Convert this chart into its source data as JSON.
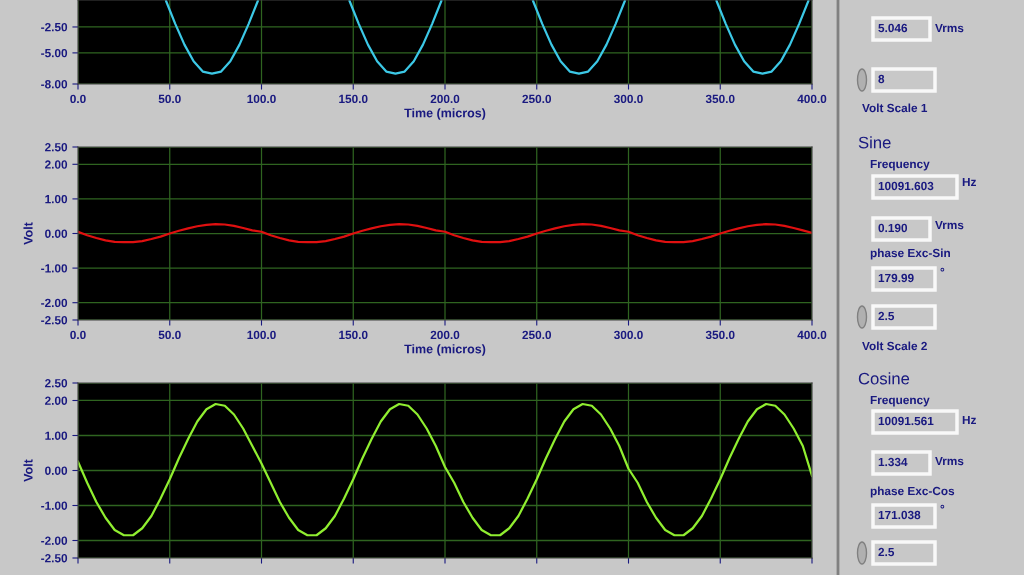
{
  "chart_data": [
    {
      "type": "line",
      "xlabel": "Time (micros)",
      "xlim": [
        0,
        400
      ],
      "ylim": [
        -8,
        0.1
      ],
      "grid": true,
      "xticks": [
        {
          "value": 0,
          "label": "0.0"
        },
        {
          "value": 50,
          "label": "50.0"
        },
        {
          "value": 100,
          "label": "100.0"
        },
        {
          "value": 150,
          "label": "150.0"
        },
        {
          "value": 200,
          "label": "200.0"
        },
        {
          "value": 250,
          "label": "250.0"
        },
        {
          "value": 300,
          "label": "300.0"
        },
        {
          "value": 350,
          "label": "350.0"
        },
        {
          "value": 400,
          "label": "400.0"
        }
      ],
      "yticks": [
        {
          "value": -8,
          "label": "-8.00"
        },
        {
          "value": -5,
          "label": "-5.00"
        },
        {
          "value": -2.5,
          "label": "-2.50"
        }
      ],
      "series": [
        {
          "color": "#3cc8e6",
          "x": [
            48,
            53,
            58,
            63,
            68,
            73,
            78,
            83,
            88,
            93,
            98,
            123,
            148,
            153,
            158,
            163,
            168,
            173,
            178,
            183,
            188,
            193,
            198,
            223,
            248,
            253,
            258,
            263,
            268,
            273,
            278,
            283,
            288,
            293,
            298,
            323,
            348,
            353,
            358,
            363,
            368,
            373,
            378,
            383,
            388,
            393,
            398
          ],
          "values": [
            0,
            -2.2,
            -4.2,
            -5.8,
            -6.8,
            -7.0,
            -6.8,
            -5.8,
            -4.2,
            -2.2,
            0,
            null,
            0,
            -2.2,
            -4.2,
            -5.8,
            -6.8,
            -7.0,
            -6.8,
            -5.8,
            -4.2,
            -2.2,
            0,
            null,
            0,
            -2.2,
            -4.2,
            -5.8,
            -6.8,
            -7.0,
            -6.8,
            -5.8,
            -4.2,
            -2.2,
            0,
            null,
            0,
            -2.2,
            -4.2,
            -5.8,
            -6.8,
            -7.0,
            -6.8,
            -5.8,
            -4.2,
            -2.2,
            0
          ]
        }
      ]
    },
    {
      "type": "line",
      "xlabel": "Time (micros)",
      "ylabel": "Volt",
      "xlim": [
        0,
        400
      ],
      "ylim": [
        -2.5,
        2.5
      ],
      "grid": true,
      "xticks": [
        {
          "value": 0,
          "label": "0.0"
        },
        {
          "value": 50,
          "label": "50.0"
        },
        {
          "value": 100,
          "label": "100.0"
        },
        {
          "value": 150,
          "label": "150.0"
        },
        {
          "value": 200,
          "label": "200.0"
        },
        {
          "value": 250,
          "label": "250.0"
        },
        {
          "value": 300,
          "label": "300.0"
        },
        {
          "value": 350,
          "label": "350.0"
        },
        {
          "value": 400,
          "label": "400.0"
        }
      ],
      "yticks": [
        {
          "value": -2.5,
          "label": "-2.50"
        },
        {
          "value": -2,
          "label": "-2.00"
        },
        {
          "value": -1,
          "label": "-1.00"
        },
        {
          "value": 0,
          "label": "0.00"
        },
        {
          "value": 1,
          "label": "1.00"
        },
        {
          "value": 2,
          "label": "2.00"
        },
        {
          "value": 2.5,
          "label": "2.50"
        }
      ],
      "series": [
        {
          "color": "#e01010",
          "x": [
            0,
            5,
            10,
            15,
            20,
            25,
            30,
            35,
            40,
            45,
            50,
            55,
            60,
            65,
            70,
            75,
            80,
            85,
            90,
            95,
            100,
            105,
            110,
            115,
            120,
            125,
            130,
            135,
            140,
            145,
            150,
            155,
            160,
            165,
            170,
            175,
            180,
            185,
            190,
            195,
            200,
            205,
            210,
            215,
            220,
            225,
            230,
            235,
            240,
            245,
            250,
            255,
            260,
            265,
            270,
            275,
            280,
            285,
            290,
            295,
            300,
            305,
            310,
            315,
            320,
            325,
            330,
            335,
            340,
            345,
            350,
            355,
            360,
            365,
            370,
            375,
            380,
            385,
            390,
            395,
            400
          ],
          "values": [
            0.05,
            -0.05,
            -0.13,
            -0.2,
            -0.24,
            -0.25,
            -0.25,
            -0.22,
            -0.16,
            -0.09,
            0.0,
            0.08,
            0.15,
            0.21,
            0.25,
            0.27,
            0.26,
            0.22,
            0.16,
            0.09,
            0.05,
            -0.05,
            -0.13,
            -0.2,
            -0.24,
            -0.25,
            -0.25,
            -0.22,
            -0.16,
            -0.09,
            0.0,
            0.08,
            0.15,
            0.21,
            0.25,
            0.27,
            0.26,
            0.22,
            0.16,
            0.09,
            0.05,
            -0.05,
            -0.13,
            -0.2,
            -0.24,
            -0.25,
            -0.25,
            -0.22,
            -0.16,
            -0.09,
            0.0,
            0.08,
            0.15,
            0.21,
            0.25,
            0.27,
            0.26,
            0.22,
            0.16,
            0.09,
            0.05,
            -0.05,
            -0.13,
            -0.2,
            -0.24,
            -0.25,
            -0.25,
            -0.22,
            -0.16,
            -0.09,
            0.0,
            0.08,
            0.15,
            0.21,
            0.25,
            0.27,
            0.26,
            0.22,
            0.16,
            0.09,
            0.02
          ]
        }
      ]
    },
    {
      "type": "line",
      "ylabel": "Volt",
      "xlim": [
        0,
        400
      ],
      "ylim": [
        -2.5,
        2.5
      ],
      "grid": true,
      "tick_labels": "y",
      "xticks": [
        {
          "value": 0,
          "label": null
        },
        {
          "value": 50,
          "label": null
        },
        {
          "value": 100,
          "label": null
        },
        {
          "value": 150,
          "label": null
        },
        {
          "value": 200,
          "label": null
        },
        {
          "value": 250,
          "label": null
        },
        {
          "value": 300,
          "label": null
        },
        {
          "value": 350,
          "label": null
        },
        {
          "value": 400,
          "label": null
        }
      ],
      "yticks": [
        {
          "value": -2.5,
          "label": "-2.50"
        },
        {
          "value": -2,
          "label": "-2.00"
        },
        {
          "value": -1,
          "label": "-1.00"
        },
        {
          "value": 0,
          "label": "0.00"
        },
        {
          "value": 1,
          "label": "1.00"
        },
        {
          "value": 2,
          "label": "2.00"
        },
        {
          "value": 2.5,
          "label": "2.50"
        }
      ],
      "series": [
        {
          "color": "#90ee30",
          "x": [
            0,
            5,
            10,
            15,
            20,
            25,
            30,
            35,
            40,
            45,
            50,
            55,
            60,
            65,
            70,
            75,
            80,
            85,
            90,
            95,
            100,
            105,
            110,
            115,
            120,
            125,
            130,
            135,
            140,
            145,
            150,
            155,
            160,
            165,
            170,
            175,
            180,
            185,
            190,
            195,
            200,
            205,
            210,
            215,
            220,
            225,
            230,
            235,
            240,
            245,
            250,
            255,
            260,
            265,
            270,
            275,
            280,
            285,
            290,
            295,
            300,
            305,
            310,
            315,
            320,
            325,
            330,
            335,
            340,
            345,
            350,
            355,
            360,
            365,
            370,
            375,
            380,
            385,
            390,
            395,
            400
          ],
          "values": [
            0.25,
            -0.35,
            -0.9,
            -1.35,
            -1.7,
            -1.85,
            -1.85,
            -1.65,
            -1.3,
            -0.8,
            -0.25,
            0.35,
            0.9,
            1.4,
            1.75,
            1.9,
            1.85,
            1.6,
            1.2,
            0.7,
            0.2,
            -0.35,
            -0.9,
            -1.35,
            -1.7,
            -1.85,
            -1.85,
            -1.65,
            -1.3,
            -0.8,
            -0.25,
            0.35,
            0.9,
            1.4,
            1.75,
            1.9,
            1.85,
            1.6,
            1.2,
            0.7,
            0.1,
            -0.35,
            -0.9,
            -1.35,
            -1.7,
            -1.85,
            -1.85,
            -1.65,
            -1.3,
            -0.8,
            -0.25,
            0.35,
            0.9,
            1.4,
            1.75,
            1.9,
            1.85,
            1.6,
            1.2,
            0.7,
            0.05,
            -0.35,
            -0.9,
            -1.35,
            -1.7,
            -1.85,
            -1.85,
            -1.65,
            -1.3,
            -0.8,
            -0.25,
            0.35,
            0.9,
            1.4,
            1.75,
            1.9,
            1.85,
            1.6,
            1.2,
            0.7,
            -0.15
          ]
        }
      ]
    },
    {
      "type": "other",
      "annotations": [
        "5.046",
        "Vrms",
        "8",
        "Volt Scale 1",
        "Sine",
        "Frequency",
        "10091.603",
        "Hz",
        "0.190",
        "Vrms",
        "phase Exc-Sin",
        "179.99",
        "°",
        "2.5",
        "Volt Scale 2",
        "Cosine",
        "Frequency",
        "10091.561",
        "Hz",
        "1.334",
        "Vrms",
        "phase Exc-Cos",
        "171.038",
        "°",
        "2.5"
      ]
    }
  ]
}
